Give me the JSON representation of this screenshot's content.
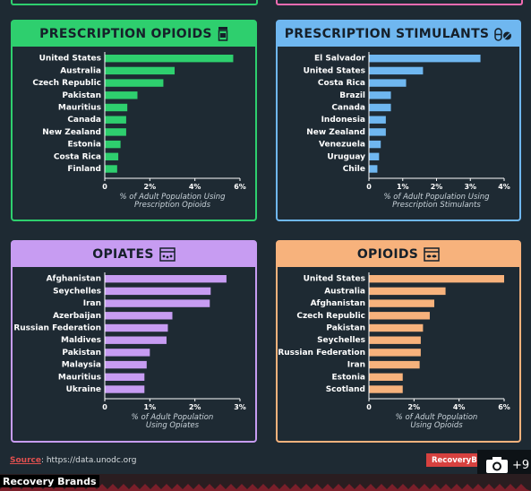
{
  "colors": {
    "background": "#1e2a33",
    "prescription_opioids": "#2ecf6e",
    "prescription_stimulants": "#6fb7f0",
    "opiates": "#c79cf2",
    "opioids": "#f7b27c",
    "brand_red": "#d6413f"
  },
  "icons": {
    "prescription_opioids": "pill-bottle-icon",
    "prescription_stimulants": "capsule-icon",
    "opiates": "opium-box-icon",
    "opioids": "pill-box-icon",
    "camera": "camera-icon"
  },
  "panels": {
    "prescription_opioids": {
      "title": "PRESCRIPTION OPIOIDS",
      "xlabel_line1": "% of Adult Population Using",
      "xlabel_line2": "Prescription Opioids"
    },
    "prescription_stimulants": {
      "title": "PRESCRIPTION STIMULANTS",
      "xlabel_line1": "% of Adult Population Using",
      "xlabel_line2": "Prescription Stimulants"
    },
    "opiates": {
      "title": "OPIATES",
      "xlabel_line1": "% of Adult Population",
      "xlabel_line2": "Using Opiates"
    },
    "opioids": {
      "title": "OPIOIDS",
      "xlabel_line1": "% of Adult Population",
      "xlabel_line2": "Using Opioids"
    }
  },
  "chart_data": [
    {
      "type": "bar",
      "orientation": "horizontal",
      "title": "PRESCRIPTION OPIOIDS",
      "categories": [
        "United States",
        "Australia",
        "Czech Republic",
        "Pakistan",
        "Mauritius",
        "Canada",
        "New Zealand",
        "Estonia",
        "Costa Rica",
        "Finland"
      ],
      "values": [
        5.7,
        3.1,
        2.6,
        1.45,
        1.0,
        0.95,
        0.95,
        0.7,
        0.6,
        0.55
      ],
      "xlabel": "% of Adult Population Using Prescription Opioids",
      "xlim": [
        0,
        6
      ],
      "xticks": [
        "0",
        "2%",
        "4%",
        "6%"
      ],
      "grid": false
    },
    {
      "type": "bar",
      "orientation": "horizontal",
      "title": "PRESCRIPTION STIMULANTS",
      "categories": [
        "El Salvador",
        "United States",
        "Costa Rica",
        "Brazil",
        "Canada",
        "Indonesia",
        "New Zealand",
        "Venezuela",
        "Uruguay",
        "Chile"
      ],
      "values": [
        3.3,
        1.6,
        1.1,
        0.65,
        0.65,
        0.5,
        0.5,
        0.35,
        0.3,
        0.25
      ],
      "xlabel": "% of Adult Population Using Prescription Stimulants",
      "xlim": [
        0,
        4
      ],
      "xticks": [
        "0",
        "1%",
        "2%",
        "3%",
        "4%"
      ],
      "grid": false
    },
    {
      "type": "bar",
      "orientation": "horizontal",
      "title": "OPIATES",
      "categories": [
        "Afghanistan",
        "Seychelles",
        "Iran",
        "Azerbaijan",
        "Russian Federation",
        "Maldives",
        "Pakistan",
        "Malaysia",
        "Mauritius",
        "Ukraine"
      ],
      "values": [
        2.7,
        2.35,
        2.33,
        1.5,
        1.4,
        1.37,
        1.0,
        0.93,
        0.88,
        0.88
      ],
      "xlabel": "% of Adult Population Using Opiates",
      "xlim": [
        0,
        3
      ],
      "xticks": [
        "0",
        "1%",
        "2%",
        "3%"
      ],
      "grid": false
    },
    {
      "type": "bar",
      "orientation": "horizontal",
      "title": "OPIOIDS",
      "categories": [
        "United States",
        "Australia",
        "Afghanistan",
        "Czech Republic",
        "Pakistan",
        "Seychelles",
        "Russian Federation",
        "Iran",
        "Estonia",
        "Scotland"
      ],
      "values": [
        6.0,
        3.4,
        2.9,
        2.7,
        2.4,
        2.3,
        2.3,
        2.25,
        1.5,
        1.5
      ],
      "xlabel": "% of Adult Population Using Opioids",
      "xlim": [
        0,
        6
      ],
      "xticks": [
        "0",
        "2%",
        "4%",
        "6%"
      ],
      "grid": false
    }
  ],
  "footer": {
    "source_label": "Source",
    "source_text": ": https://data.unodc.org",
    "brand_box": "RecoveryBrands.com",
    "photo_count": "+9",
    "watermark": "Recovery Brands"
  }
}
